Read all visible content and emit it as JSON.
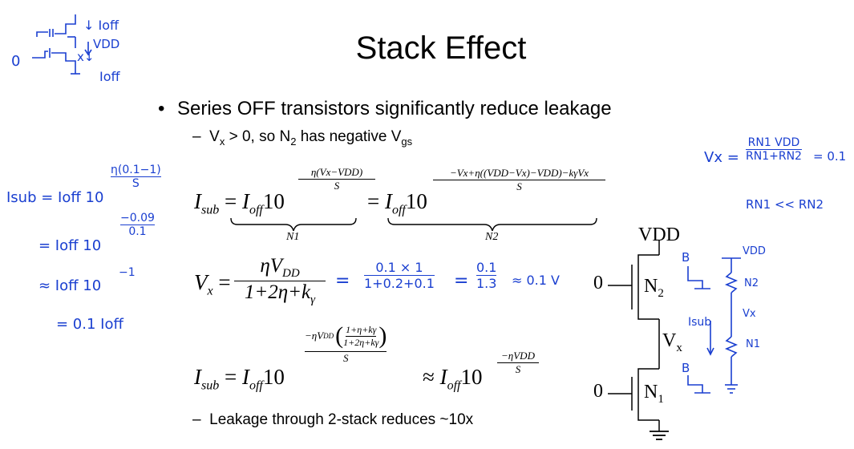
{
  "slide": {
    "title": "Stack Effect",
    "bullet_main": "Series OFF transistors significantly reduce leakage",
    "sub_vx_1": "V",
    "sub_vx_2": "x",
    "sub_vx_3": " > 0, so N",
    "sub_vx_4": "2",
    "sub_vx_5": " has negative V",
    "sub_vx_6": "gs",
    "bullet_leakage": "Leakage through 2-stack reduces ~10x",
    "dash": "–"
  },
  "equations": {
    "isub_lhs": "I",
    "isub_sub": "sub",
    "eq": "=",
    "ioff": "I",
    "ioff_sub": "off",
    "ten": "10",
    "exp1_num": "η(Vx−VDD)",
    "exp1_den": "S",
    "exp2_num": "−Vx+η((VDD−Vx)−VDD)−kγVx",
    "exp2_den": "S",
    "brace1_label": "N1",
    "brace2_label": "N2",
    "vx_lhs": "V",
    "vx_sub": "x",
    "vx_num": "ηV",
    "vx_num_sub": "DD",
    "vx_den": "1+2η+k",
    "vx_den_sub": "γ",
    "isub2_exp_pre": "−ηV",
    "isub2_exp_pre_sub": "DD",
    "isub2_inner_num": "1+η+kγ",
    "isub2_inner_den": "1+2η+kγ",
    "isub2_exp_den": "S",
    "approx": "≈",
    "isub3_exp_num": "−ηVDD",
    "isub3_exp_den": "S"
  },
  "circuit": {
    "vdd": "VDD",
    "n2": "N",
    "n2_sub": "2",
    "n1": "N",
    "n1_sub": "1",
    "vx": "V",
    "vx_sub": "x",
    "in2": "0",
    "in1": "0"
  },
  "handwriting": {
    "tl_ioff_top": "↓ Ioff",
    "tl_vdd": "VDD",
    "tl_ioff_bot": "Ioff",
    "tl_zero": "0",
    "tl_x": "x↓",
    "isub_line1": "Isub = Ioff 10",
    "isub_exp1_num": "η(0.1−1)",
    "isub_exp1_den": "S",
    "isub_line2": "= Ioff 10",
    "isub_exp2_num": "−0.09",
    "isub_exp2_den": "0.1",
    "isub_line3": "≈ Ioff 10",
    "isub_exp3": "−1",
    "isub_line4": "= 0.1 Ioff",
    "vx_calc_eq": "=",
    "vx_calc_num": "0.1 × 1",
    "vx_calc_den": "1+0.2+0.1",
    "vx_calc_eq2": "=",
    "vx_calc_num2": "0.1",
    "vx_calc_den2": "1.3",
    "vx_calc_result": "≈ 0.1 V",
    "tr_vx": "Vx =",
    "tr_num": "RN1 VDD",
    "tr_den": "RN1+RN2",
    "tr_result": "= 0.1",
    "tr_cond": "RN1 << RN2",
    "b_top": "B",
    "b_bot": "B",
    "isub_label": "Isub",
    "r_vdd": "VDD",
    "r_n2": "N2",
    "r_vx": "Vx",
    "r_n1": "N1"
  }
}
